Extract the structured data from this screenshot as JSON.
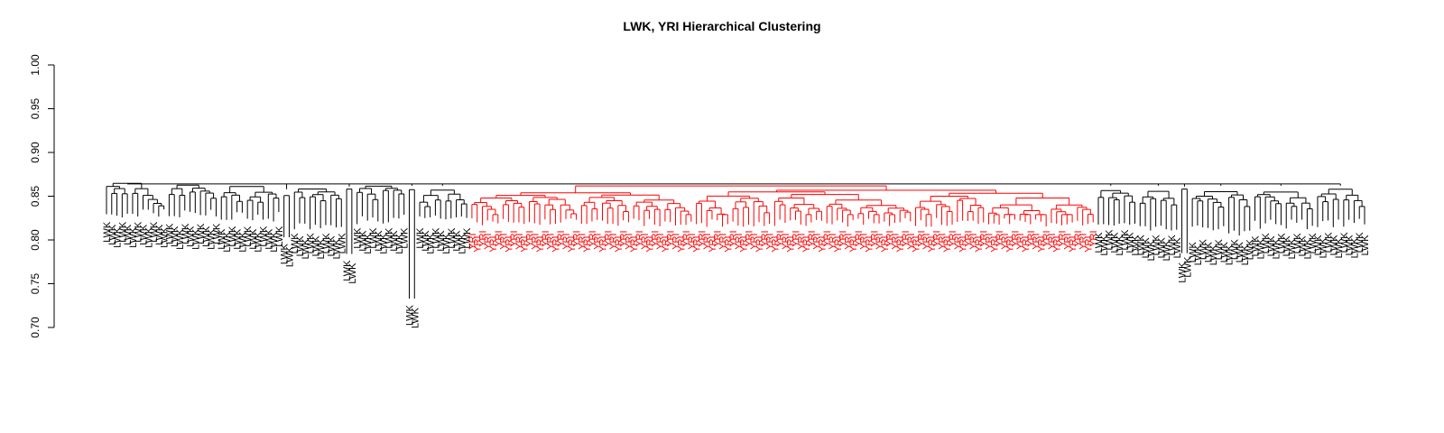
{
  "chart_data": {
    "type": "dendrogram",
    "title": "LWK, YRI Hierarchical Clustering",
    "xlabel": "",
    "ylabel": "",
    "ylim": [
      0.7,
      1.0
    ],
    "y_ticks": [
      "0.70",
      "0.75",
      "0.80",
      "0.85",
      "0.90",
      "0.95",
      "1.00"
    ],
    "grid": false,
    "legend": "none",
    "groups": [
      {
        "name": "LWK",
        "color": "#000000"
      },
      {
        "name": "YRI",
        "color": "#ff0000"
      }
    ],
    "root_height": 0.864,
    "clusters": [
      {
        "group": "LWK",
        "leaves": 12,
        "merge": 0.87,
        "leaf_base": 0.825,
        "spread": 0.01
      },
      {
        "group": "LWK",
        "leaves": 10,
        "merge": 0.866,
        "leaf_base": 0.823,
        "spread": 0.012
      },
      {
        "group": "LWK",
        "leaves": 12,
        "merge": 0.866,
        "leaf_base": 0.82,
        "spread": 0.012
      },
      {
        "group": "LWK",
        "leaves": 2,
        "merge": 0.858,
        "leaf_base": 0.803,
        "spread": 0.0
      },
      {
        "group": "LWK",
        "leaves": 10,
        "merge": 0.865,
        "leaf_base": 0.812,
        "spread": 0.01
      },
      {
        "group": "LWK",
        "leaves": 2,
        "merge": 0.861,
        "leaf_base": 0.784,
        "spread": 0.0
      },
      {
        "group": "LWK",
        "leaves": 10,
        "merge": 0.864,
        "leaf_base": 0.818,
        "spread": 0.012
      },
      {
        "group": "LWK",
        "leaves": 2,
        "merge": 0.862,
        "leaf_base": 0.733,
        "spread": 0.0
      },
      {
        "group": "LWK",
        "leaves": 10,
        "merge": 0.862,
        "leaf_base": 0.818,
        "spread": 0.01
      },
      {
        "group": "YRI",
        "leaves": 120,
        "merge": 0.866,
        "leaf_base": 0.815,
        "spread": 0.01
      },
      {
        "group": "LWK",
        "leaves": 8,
        "merge": 0.862,
        "leaf_base": 0.816,
        "spread": 0.004
      },
      {
        "group": "LWK",
        "leaves": 8,
        "merge": 0.862,
        "leaf_base": 0.81,
        "spread": 0.008
      },
      {
        "group": "LWK",
        "leaves": 2,
        "merge": 0.861,
        "leaf_base": 0.785,
        "spread": 0.0
      },
      {
        "group": "LWK",
        "leaves": 12,
        "merge": 0.862,
        "leaf_base": 0.805,
        "spread": 0.014
      },
      {
        "group": "LWK",
        "leaves": 12,
        "merge": 0.862,
        "leaf_base": 0.812,
        "spread": 0.012
      },
      {
        "group": "LWK",
        "leaves": 10,
        "merge": 0.862,
        "leaf_base": 0.813,
        "spread": 0.012
      }
    ]
  }
}
